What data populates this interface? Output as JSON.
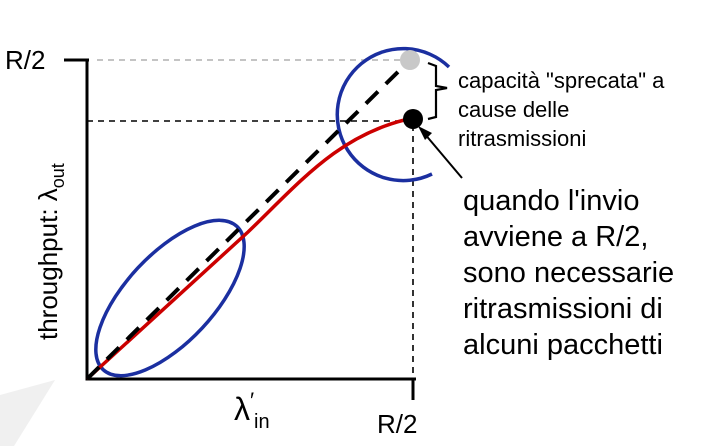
{
  "chart": {
    "y_tick_label": "R/2",
    "x_tick_label": "R/2",
    "y_axis_label": "throughput: λ",
    "y_axis_subscript": "out",
    "x_axis_symbol": "λ",
    "x_axis_prime": "′",
    "x_axis_subscript": "in"
  },
  "annotations": {
    "wasted_capacity": [
      "capacità \"sprecata\" a",
      "cause delle",
      "ritrasmissioni"
    ],
    "retransmission_note": [
      "quando l'invio",
      "avviene a R/2,",
      "sono necessarie",
      "ritrasmissioni di",
      "alcuni pacchetti"
    ]
  },
  "colors": {
    "throughput_curve": "#cc0000",
    "ideal_line": "#000000",
    "highlight_ellipse": "#1b2fa0",
    "ideal_point": "#c8c8c8",
    "actual_point": "#000000",
    "reference_lines_light": "#b0b0b0",
    "reference_lines_dark": "#000000",
    "background_shape": "#f0f0f0"
  }
}
